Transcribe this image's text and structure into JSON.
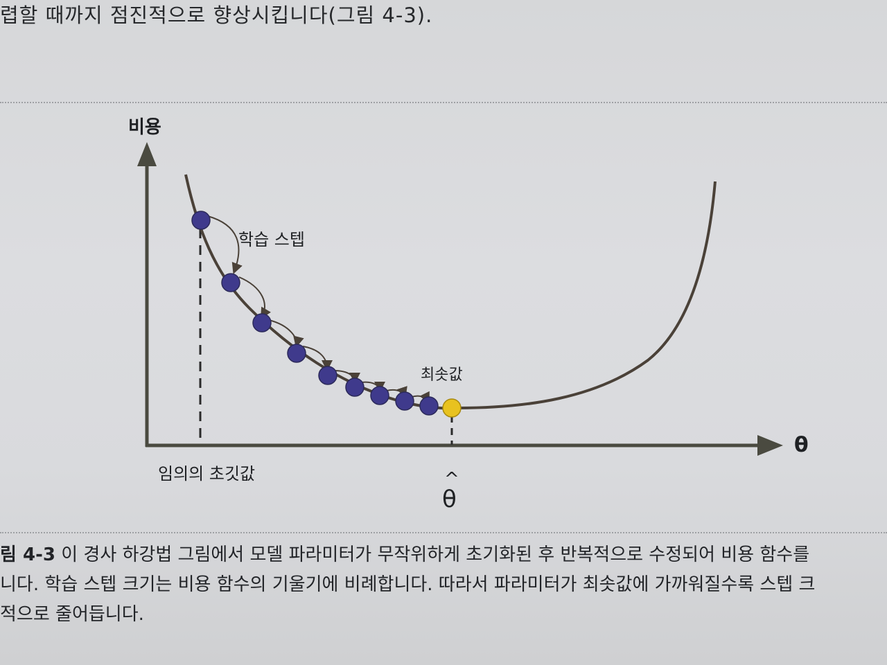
{
  "page": {
    "top_line": "렵할 때까지 점진적으로 향상시킵니다(그림 4-3)."
  },
  "figure": {
    "y_axis_label": "비용",
    "x_axis_label": "θ",
    "step_label": "학습 스텝",
    "min_label": "최솟값",
    "init_label": "임의의 초깃값",
    "theta_hat_label": "θ",
    "theta_hat_caret": "^",
    "colors": {
      "curve": "#4a4138",
      "step_point": "#3f3a8c",
      "min_point": "#e8c21f",
      "axis": "#4a4a40"
    }
  },
  "caption": {
    "label": "림 4-3",
    "line1": " 이 경사 하강법 그림에서 모델 파라미터가 무작위하게 초기화된 후 반복적으로 수정되어 비용 함수를",
    "line2": "니다. 학습 스텝 크기는 비용 함수의 기울기에 비례합니다. 따라서 파라미터가 최솟값에 가까워질수록 스텝 크",
    "line3": "적으로 줄어듭니다."
  }
}
